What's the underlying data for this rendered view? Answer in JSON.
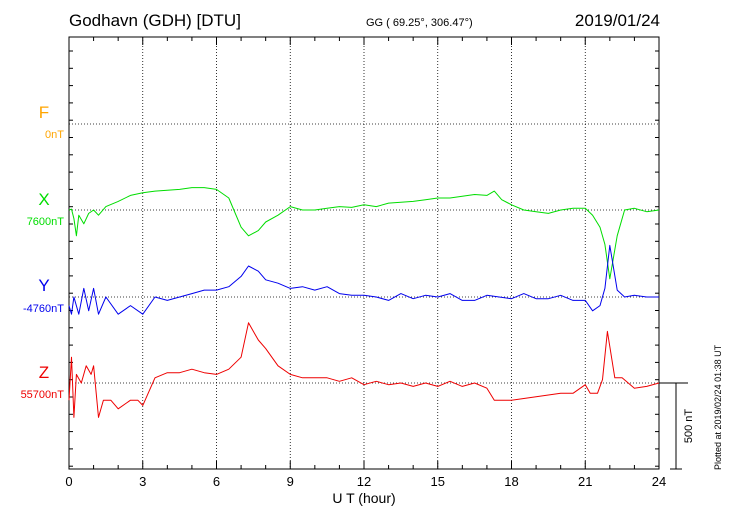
{
  "header": {
    "station": "Godhavn (GDH)  [DTU]",
    "coords": "GG ( 69.25°, 306.47°)",
    "date": "2019/01/24"
  },
  "plotted_note": "Plotted at 2019/02/24 01:38 UT",
  "chart_data": {
    "type": "line",
    "xlabel": "U T (hour)",
    "xlim": [
      0,
      24
    ],
    "xticks": [
      "0",
      "3",
      "6",
      "9",
      "12",
      "15",
      "18",
      "21",
      "24"
    ],
    "scale_bar_label": "500 nT",
    "grid": true,
    "series": [
      {
        "name": "F",
        "baseline": "0nT",
        "color": "#FFA500",
        "x": [],
        "y": []
      },
      {
        "name": "X",
        "baseline": "7600nT",
        "color": "#00DD00",
        "x": [
          0,
          0.1,
          0.2,
          0.3,
          0.4,
          0.6,
          0.8,
          1.0,
          1.2,
          1.5,
          2,
          2.5,
          3,
          3.5,
          4,
          4.5,
          5,
          5.5,
          6,
          6.5,
          7,
          7.3,
          7.7,
          8,
          8.5,
          9,
          9.5,
          10,
          10.5,
          11,
          11.5,
          12,
          12.5,
          13,
          13.5,
          14,
          14.5,
          15,
          15.5,
          16,
          16.5,
          17,
          17.3,
          17.6,
          18,
          18.5,
          19,
          19.5,
          20,
          20.5,
          21,
          21.3,
          21.6,
          21.8,
          22,
          22.3,
          22.6,
          23,
          23.5,
          24
        ],
        "y": [
          0,
          5,
          -50,
          -150,
          -30,
          -80,
          -20,
          0,
          -30,
          20,
          50,
          85,
          100,
          110,
          115,
          120,
          130,
          130,
          120,
          70,
          -100,
          -150,
          -120,
          -70,
          -30,
          20,
          0,
          0,
          10,
          20,
          15,
          30,
          20,
          40,
          45,
          50,
          60,
          70,
          70,
          80,
          90,
          85,
          110,
          60,
          30,
          0,
          -10,
          -20,
          0,
          10,
          10,
          -30,
          -100,
          -200,
          -400,
          -150,
          0,
          10,
          -10,
          0
        ]
      },
      {
        "name": "Y",
        "baseline": "-4760nT",
        "color": "#0000EE",
        "x": [
          0,
          0.1,
          0.2,
          0.4,
          0.6,
          0.8,
          1.0,
          1.2,
          1.5,
          2,
          2.5,
          3,
          3.5,
          4,
          4.5,
          5,
          5.5,
          6,
          6.5,
          7,
          7.3,
          7.7,
          8,
          8.5,
          9,
          9.5,
          10,
          10.5,
          11,
          11.5,
          12,
          12.5,
          13,
          13.5,
          14,
          14.5,
          15,
          15.5,
          16,
          16.5,
          17,
          17.5,
          18,
          18.5,
          19,
          19.5,
          20,
          20.5,
          21,
          21.3,
          21.6,
          21.8,
          22,
          22.3,
          22.6,
          23,
          23.5,
          24
        ],
        "y": [
          -50,
          -100,
          0,
          -100,
          50,
          -80,
          50,
          -100,
          0,
          -100,
          -50,
          -100,
          0,
          -20,
          0,
          20,
          40,
          40,
          60,
          120,
          180,
          150,
          100,
          80,
          50,
          60,
          40,
          60,
          20,
          10,
          10,
          0,
          -20,
          20,
          -10,
          10,
          0,
          20,
          -20,
          -20,
          10,
          0,
          -10,
          20,
          -10,
          -10,
          10,
          -20,
          -20,
          -80,
          -50,
          50,
          300,
          40,
          0,
          10,
          0,
          0
        ]
      },
      {
        "name": "Z",
        "baseline": "55700nT",
        "color": "#EE0000",
        "x": [
          0,
          0.1,
          0.2,
          0.3,
          0.5,
          0.7,
          0.9,
          1.0,
          1.2,
          1.4,
          1.7,
          2,
          2.5,
          2.8,
          3,
          3.5,
          4,
          4.5,
          5,
          5.5,
          6,
          6.5,
          7,
          7.3,
          7.7,
          8,
          8.5,
          9,
          9.5,
          10,
          10.5,
          11,
          11.5,
          12,
          12.5,
          13,
          13.5,
          14,
          14.5,
          15,
          15.5,
          16,
          16.5,
          17,
          17.3,
          17.5,
          18,
          18.5,
          19,
          19.5,
          20,
          20.5,
          21,
          21.2,
          21.5,
          21.7,
          21.9,
          22.2,
          22.5,
          23,
          23.5,
          24
        ],
        "y": [
          -100,
          150,
          -200,
          50,
          0,
          100,
          50,
          100,
          -200,
          -100,
          -100,
          -150,
          -100,
          -100,
          -130,
          30,
          60,
          60,
          80,
          60,
          50,
          80,
          150,
          350,
          250,
          200,
          100,
          50,
          30,
          30,
          30,
          10,
          30,
          -10,
          10,
          -10,
          0,
          -20,
          0,
          -20,
          10,
          -20,
          0,
          -30,
          -100,
          -100,
          -100,
          -90,
          -80,
          -70,
          -60,
          -60,
          -10,
          -60,
          -60,
          20,
          300,
          30,
          30,
          -30,
          -20,
          0
        ]
      }
    ]
  }
}
